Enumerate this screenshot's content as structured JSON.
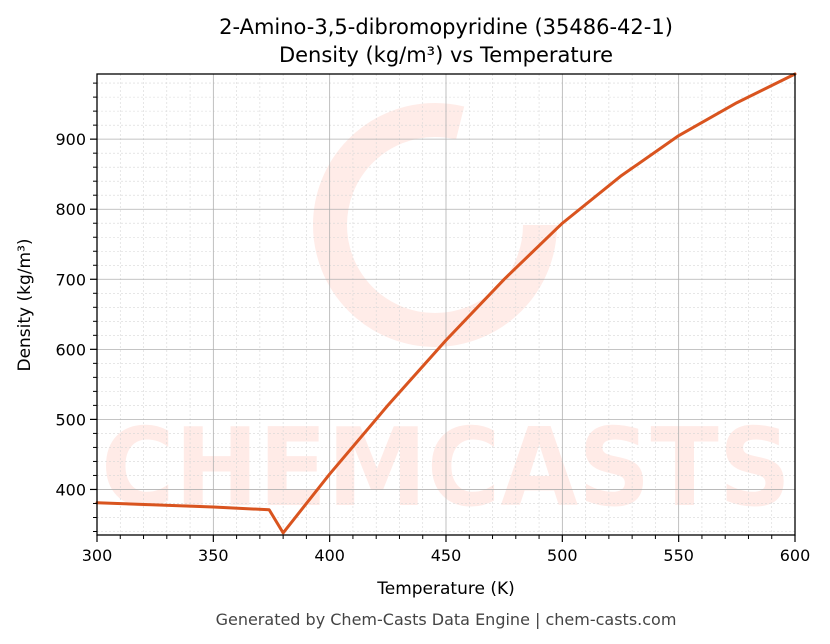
{
  "chart_data": {
    "type": "line",
    "title": "2-Amino-3,5-dibromopyridine (35486-42-1)",
    "subtitle": "Density (kg/m³) vs Temperature",
    "xlabel": "Temperature (K)",
    "ylabel": "Density (kg/m³)",
    "xlim": [
      300,
      600
    ],
    "ylim": [
      335,
      993
    ],
    "x_ticks": [
      300,
      350,
      400,
      450,
      500,
      550,
      600
    ],
    "y_ticks": [
      400,
      500,
      600,
      700,
      800,
      900
    ],
    "grid": true,
    "series": [
      {
        "color": "#d9541f",
        "x": [
          300,
          325,
          350,
          374,
          380,
          400,
          425,
          450,
          475,
          500,
          525,
          550,
          575,
          600
        ],
        "y": [
          381,
          378,
          375,
          371,
          338,
          422,
          520,
          613,
          700,
          780,
          847,
          905,
          952,
          993
        ]
      }
    ]
  },
  "watermark": "CHEMCASTS",
  "footer": "Generated by Chem-Casts Data Engine | chem-casts.com"
}
